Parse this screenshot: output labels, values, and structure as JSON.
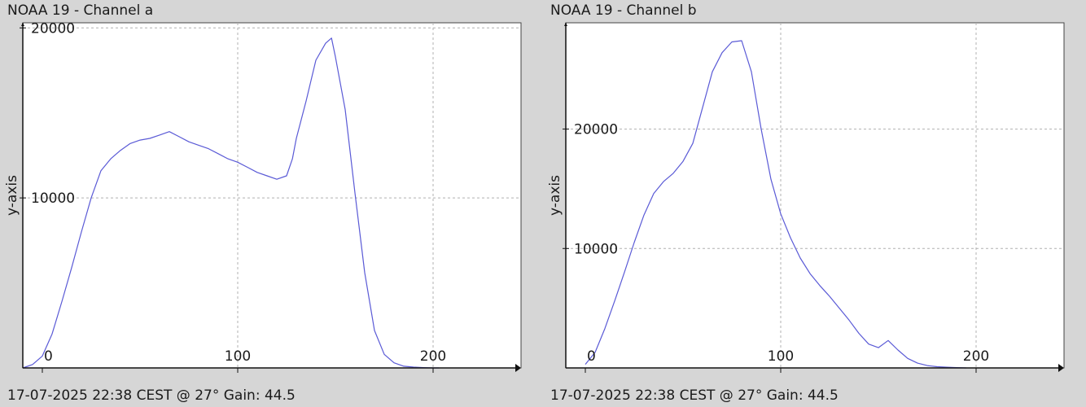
{
  "chart_data": [
    {
      "type": "line",
      "title": "NOAA 19 - Channel a",
      "footer": "17-07-2025 22:38 CEST @ 27° Gain: 44.5",
      "ylabel": "y-axis",
      "xlabel": "",
      "xlim": [
        -10,
        245
      ],
      "ylim": [
        0,
        20300
      ],
      "x_ticks": [
        0,
        100,
        200
      ],
      "y_ticks": [
        10000,
        20000
      ],
      "y_tick_labels": [
        "10000",
        "20000"
      ],
      "x_tick_labels": [
        "0",
        "100",
        "200"
      ],
      "grid": true,
      "line_color": "#5a5ad6",
      "series": [
        {
          "x": [
            -10,
            -5,
            0,
            5,
            10,
            15,
            20,
            25,
            30,
            35,
            40,
            45,
            50,
            55,
            60,
            65,
            70,
            75,
            80,
            85,
            90,
            95,
            100,
            105,
            110,
            115,
            120,
            125,
            128,
            130,
            135,
            140,
            145,
            148,
            150,
            155,
            160,
            165,
            170,
            175,
            180,
            185,
            190,
            195,
            200,
            203
          ],
          "y": [
            0,
            200,
            700,
            2000,
            3900,
            5900,
            8000,
            10000,
            11600,
            12300,
            12800,
            13200,
            13400,
            13500,
            13700,
            13900,
            13600,
            13300,
            13100,
            12900,
            12600,
            12300,
            12100,
            11800,
            11500,
            11300,
            11100,
            11300,
            12300,
            13500,
            15700,
            18100,
            19100,
            19400,
            18300,
            15200,
            10300,
            5600,
            2200,
            800,
            300,
            100,
            50,
            20,
            0,
            0
          ]
        }
      ]
    },
    {
      "type": "line",
      "title": "NOAA 19 - Channel b",
      "footer": "17-07-2025 22:38 CEST @ 27° Gain: 44.5",
      "ylabel": "y-axis",
      "xlabel": "",
      "xlim": [
        -10,
        245
      ],
      "ylim": [
        0,
        28900
      ],
      "x_ticks": [
        0,
        100,
        200
      ],
      "y_ticks": [
        10000,
        20000
      ],
      "y_tick_labels": [
        "10000",
        "20000"
      ],
      "x_tick_labels": [
        "0",
        "100",
        "200"
      ],
      "grid": true,
      "line_color": "#5a5ad6",
      "series": [
        {
          "x": [
            0,
            5,
            10,
            15,
            20,
            25,
            30,
            35,
            40,
            45,
            50,
            55,
            60,
            65,
            70,
            75,
            80,
            85,
            90,
            95,
            100,
            105,
            110,
            115,
            120,
            125,
            130,
            135,
            140,
            145,
            150,
            155,
            160,
            165,
            170,
            175,
            180,
            185,
            190,
            195
          ],
          "y": [
            300,
            1300,
            3300,
            5600,
            8000,
            10500,
            12800,
            14600,
            15600,
            16300,
            17300,
            18800,
            21800,
            24800,
            26400,
            27300,
            27400,
            24800,
            20000,
            15800,
            12900,
            10900,
            9200,
            7900,
            6900,
            6000,
            5000,
            4000,
            2900,
            2000,
            1700,
            2300,
            1500,
            800,
            400,
            200,
            100,
            60,
            30,
            0
          ]
        }
      ]
    }
  ]
}
